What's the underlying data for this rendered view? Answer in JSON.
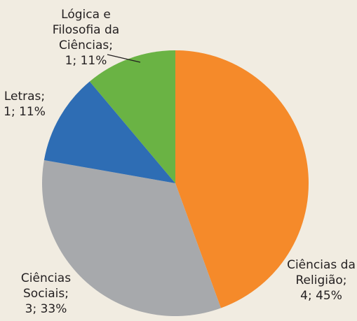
{
  "chart_data": {
    "type": "pie",
    "categories": [
      "Ciências da Religião",
      "Ciências Sociais",
      "Letras",
      "Lógica e Filosofia da Ciências"
    ],
    "values": [
      4,
      3,
      1,
      1
    ],
    "value_labels": [
      "4; 45%",
      "3; 33%",
      "1; 11%",
      "1; 11%"
    ],
    "label_separator": ";",
    "colors": [
      "#f58a2a",
      "#a7a9ac",
      "#2e6db4",
      "#6ab344"
    ],
    "start_angle": 0,
    "direction": "clockwise"
  }
}
